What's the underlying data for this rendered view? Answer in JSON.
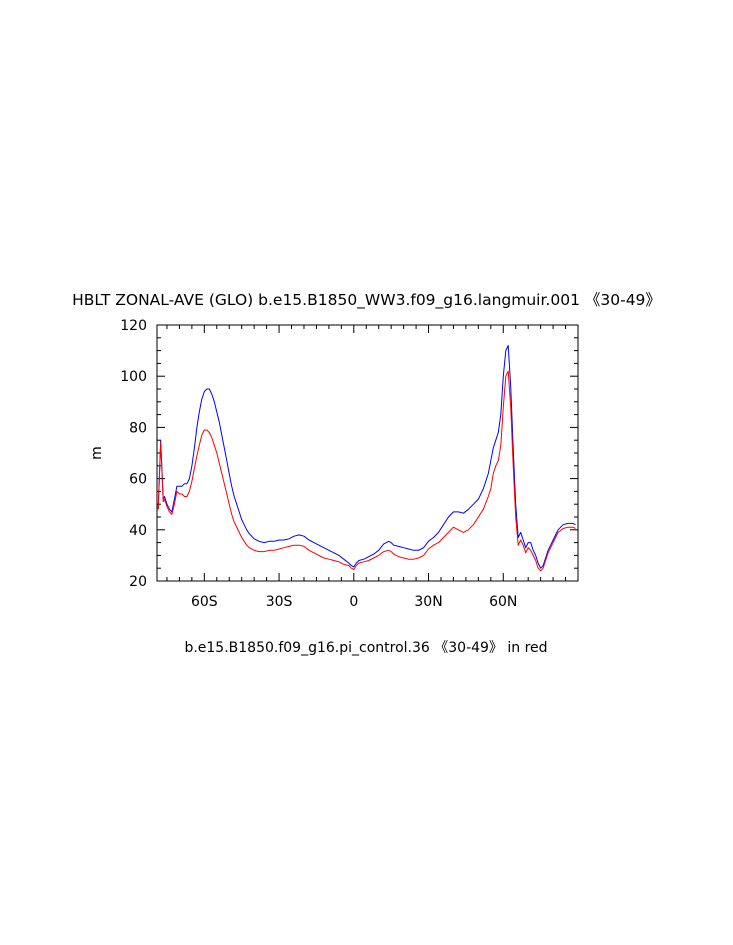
{
  "chart_data": {
    "type": "line",
    "title": "HBLT ZONAL-AVE (GLO) b.e15.B1850_WW3.f09_g16.langmuir.001 《30-49》",
    "subtitle": "b.e15.B1850.f09_g16.pi_control.36 《30-49》 in red",
    "xlabel": "",
    "ylabel": "m",
    "xlim": [
      -79,
      90
    ],
    "ylim": [
      20,
      120
    ],
    "x_ticks": [
      {
        "value": -60,
        "label": "60S"
      },
      {
        "value": -30,
        "label": "30S"
      },
      {
        "value": 0,
        "label": "0"
      },
      {
        "value": 30,
        "label": "30N"
      },
      {
        "value": 60,
        "label": "60N"
      }
    ],
    "y_ticks": [
      {
        "value": 20,
        "label": "20"
      },
      {
        "value": 40,
        "label": "40"
      },
      {
        "value": 60,
        "label": "60"
      },
      {
        "value": 80,
        "label": "80"
      },
      {
        "value": 100,
        "label": "100"
      },
      {
        "value": 120,
        "label": "120"
      }
    ],
    "grid": false,
    "series": [
      {
        "color": "#0000ff",
        "x": [
          -78.5,
          -77.5,
          -76.5,
          -76,
          -75,
          -74,
          -73,
          -72,
          -71,
          -70,
          -69,
          -68,
          -67,
          -66,
          -65,
          -64,
          -63,
          -62,
          -61,
          -60,
          -59,
          -58,
          -57,
          -56,
          -55,
          -54,
          -53,
          -52,
          -51,
          -50,
          -49,
          -48,
          -47,
          -46,
          -45,
          -44,
          -43,
          -42,
          -40,
          -38,
          -36,
          -34,
          -32,
          -30,
          -28,
          -26,
          -24,
          -22,
          -20,
          -18,
          -16,
          -14,
          -12,
          -10,
          -8,
          -6,
          -4,
          -2,
          -1,
          0,
          1,
          2,
          4,
          6,
          8,
          10,
          12,
          14,
          15,
          16,
          18,
          20,
          22,
          24,
          26,
          28,
          30,
          32,
          34,
          36,
          38,
          40,
          42,
          44,
          46,
          48,
          50,
          52,
          54,
          55,
          56,
          57,
          58,
          59,
          60,
          61,
          62,
          63,
          64,
          65,
          66,
          67,
          68,
          69,
          70,
          71,
          72,
          73,
          74,
          75,
          76,
          77,
          78,
          79,
          80,
          81,
          82,
          84,
          86,
          88,
          89
        ],
        "y": [
          48,
          75,
          52,
          53,
          50,
          48,
          47,
          52,
          57,
          57,
          57,
          58,
          58,
          60,
          65,
          72,
          80,
          86,
          91,
          94,
          95,
          95,
          93,
          90,
          86,
          82,
          77,
          72,
          67,
          62,
          57,
          53,
          50,
          47,
          44,
          42,
          40,
          38.5,
          36.5,
          35.5,
          35,
          35.5,
          35.5,
          36,
          36,
          36.5,
          37.5,
          38,
          37.5,
          36,
          35,
          34,
          33,
          32,
          31,
          30,
          28.5,
          27,
          26,
          25.5,
          27,
          28,
          28.5,
          29.5,
          30.5,
          32,
          34.5,
          35.5,
          35,
          34,
          33.5,
          33,
          32.5,
          32,
          32,
          33,
          35.5,
          37,
          39,
          42,
          45,
          47,
          47,
          46.5,
          48,
          50,
          52,
          56,
          62,
          67,
          72,
          75,
          78,
          85,
          100,
          110,
          112,
          96,
          72,
          50,
          37,
          39,
          36,
          33,
          35,
          35,
          32,
          30,
          27,
          25,
          26,
          29,
          32,
          34,
          36,
          38,
          40,
          42,
          42.5,
          42.5,
          42
        ]
      },
      {
        "color": "#ff0000",
        "x": [
          -78.5,
          -77.5,
          -76.5,
          -76,
          -75,
          -74,
          -73,
          -72,
          -71,
          -70,
          -69,
          -68,
          -67,
          -66,
          -65,
          -64,
          -63,
          -62,
          -61,
          -60,
          -59,
          -58,
          -57,
          -56,
          -55,
          -54,
          -53,
          -52,
          -51,
          -50,
          -49,
          -48,
          -47,
          -46,
          -45,
          -44,
          -43,
          -42,
          -40,
          -38,
          -36,
          -34,
          -32,
          -30,
          -28,
          -26,
          -24,
          -22,
          -20,
          -18,
          -16,
          -14,
          -12,
          -10,
          -8,
          -6,
          -4,
          -2,
          -1,
          0,
          1,
          2,
          4,
          6,
          8,
          10,
          12,
          14,
          15,
          16,
          18,
          20,
          22,
          24,
          26,
          28,
          30,
          32,
          34,
          36,
          38,
          40,
          42,
          44,
          46,
          48,
          50,
          52,
          54,
          55,
          56,
          57,
          58,
          59,
          60,
          61,
          62,
          63,
          64,
          65,
          66,
          67,
          68,
          69,
          70,
          71,
          72,
          73,
          74,
          75,
          76,
          77,
          78,
          79,
          80,
          81,
          82,
          84,
          86,
          88,
          89
        ],
        "y": [
          48,
          74,
          51,
          52,
          49,
          47,
          46,
          50,
          55,
          54,
          54,
          53,
          53,
          55,
          59,
          64,
          69,
          73,
          77,
          79,
          79,
          78,
          76,
          73,
          70,
          66,
          62,
          58,
          54,
          50,
          46,
          43,
          41,
          39,
          37,
          35.5,
          34,
          33,
          32,
          31.5,
          31.5,
          32,
          32,
          32.5,
          33,
          33.5,
          34,
          34,
          33.5,
          32,
          31,
          30,
          29,
          28.5,
          28,
          27.5,
          26.5,
          26,
          25,
          24.5,
          26,
          27,
          27.5,
          28,
          29,
          30,
          31.5,
          32,
          31.5,
          30.5,
          29.5,
          29,
          28.5,
          28.5,
          29,
          30,
          32.5,
          34,
          35,
          37,
          39,
          41,
          40,
          39,
          40,
          42,
          45,
          48,
          53,
          56,
          62,
          65,
          67,
          73,
          88,
          100,
          102,
          88,
          65,
          45,
          34,
          36,
          34,
          31,
          33,
          32,
          30,
          28,
          25,
          24,
          25,
          28,
          31,
          33,
          35,
          37,
          39,
          40.5,
          41,
          41,
          40.5
        ]
      }
    ]
  }
}
